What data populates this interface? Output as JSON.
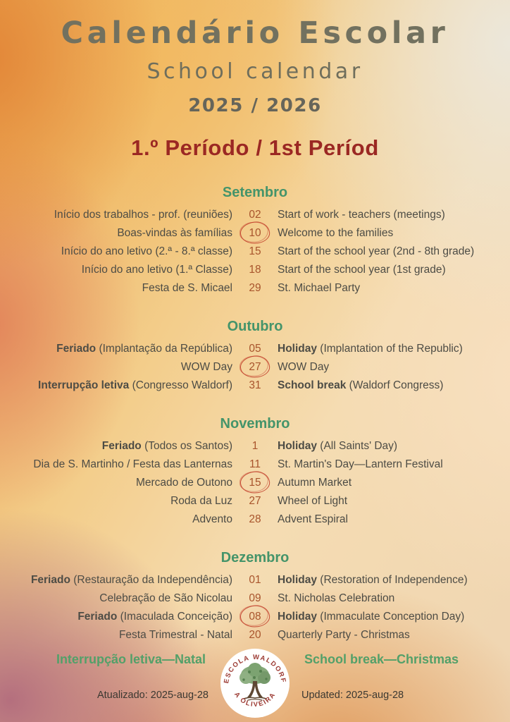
{
  "header": {
    "title_pt": "Calendário Escolar",
    "title_en": "School calendar",
    "years": "2025 / 2026",
    "period": "1.º Período / 1st Períod"
  },
  "months": [
    {
      "name": "Setembro",
      "rows": [
        {
          "pt_bold": "",
          "pt": "Início dos trabalhos - prof. (reuniões)",
          "date": "02",
          "en_bold": "",
          "en": "Start of work - teachers (meetings)",
          "circled": false
        },
        {
          "pt_bold": "",
          "pt": "Boas-vindas às famílias",
          "date": "10",
          "en_bold": "",
          "en": "Welcome to the families",
          "circled": true
        },
        {
          "pt_bold": "",
          "pt": "Início do ano letivo (2.ª - 8.ª classe)",
          "date": "15",
          "en_bold": "",
          "en": "Start of the school year (2nd - 8th grade)",
          "circled": false
        },
        {
          "pt_bold": "",
          "pt": "Início do ano letivo (1.ª Classe)",
          "date": "18",
          "en_bold": "",
          "en": "Start of the school year (1st grade)",
          "circled": false
        },
        {
          "pt_bold": "",
          "pt": "Festa de S. Micael",
          "date": "29",
          "en_bold": "",
          "en": "St. Michael Party",
          "circled": false
        }
      ]
    },
    {
      "name": "Outubro",
      "rows": [
        {
          "pt_bold": "Feriado",
          "pt": " (Implantação da República)",
          "date": "05",
          "en_bold": "Holiday",
          "en": " (Implantation of the Republic)",
          "circled": false
        },
        {
          "pt_bold": "",
          "pt": "WOW Day",
          "date": "27",
          "en_bold": "",
          "en": "WOW Day",
          "circled": true
        },
        {
          "pt_bold": "Interrupção letiva",
          "pt": " (Congresso Waldorf)",
          "date": "31",
          "en_bold": "School break",
          "en": " (Waldorf Congress)",
          "circled": false
        }
      ]
    },
    {
      "name": "Novembro",
      "rows": [
        {
          "pt_bold": "Feriado",
          "pt": " (Todos os Santos)",
          "date": "1",
          "en_bold": "Holiday",
          "en": " (All Saints' Day)",
          "circled": false
        },
        {
          "pt_bold": "",
          "pt": "Dia de S. Martinho / Festa das Lanternas",
          "date": "11",
          "en_bold": "",
          "en": "St. Martin's Day—Lantern Festival",
          "circled": false
        },
        {
          "pt_bold": "",
          "pt": "Mercado de Outono",
          "date": "15",
          "en_bold": "",
          "en": "Autumn Market",
          "circled": true
        },
        {
          "pt_bold": "",
          "pt": "Roda da Luz",
          "date": "27",
          "en_bold": "",
          "en": "Wheel of Light",
          "circled": false
        },
        {
          "pt_bold": "",
          "pt": "Advento",
          "date": "28",
          "en_bold": "",
          "en": "Advent Espiral",
          "circled": false
        }
      ]
    },
    {
      "name": "Dezembro",
      "rows": [
        {
          "pt_bold": "Feriado",
          "pt": " (Restauração da Independência)",
          "date": "01",
          "en_bold": "Holiday",
          "en": " (Restoration of Independence)",
          "circled": false
        },
        {
          "pt_bold": "",
          "pt": "Celebração de São Nicolau",
          "date": "09",
          "en_bold": "",
          "en": "St. Nicholas Celebration",
          "circled": false
        },
        {
          "pt_bold": "Feriado",
          "pt": " (Imaculada Conceição)",
          "date": "08",
          "en_bold": "Holiday",
          "en": " (Immaculate Conception Day)",
          "circled": true
        },
        {
          "pt_bold": "",
          "pt": "Festa Trimestral - Natal",
          "date": "20",
          "en_bold": "",
          "en": "Quarterly Party - Christmas",
          "circled": false
        }
      ]
    }
  ],
  "christmas_break": {
    "pt": "Interrupção letiva—Natal",
    "en": "School break—Christmas"
  },
  "logo": {
    "arc_top": "ESCOLA WALDORF",
    "arc_bottom": "A OLIVEIRA"
  },
  "footer": {
    "pt": "Atualizado: 2025-aug-28",
    "en": "Updated: 2025-aug-28"
  },
  "colors": {
    "title_olive": "#72715f",
    "period_red": "#9b2823",
    "month_green": "#44946a",
    "break_green": "#53a069",
    "date_terracotta": "#a8542c",
    "circle_red": "#c23e2a",
    "body_ink": "#4d4c45"
  }
}
